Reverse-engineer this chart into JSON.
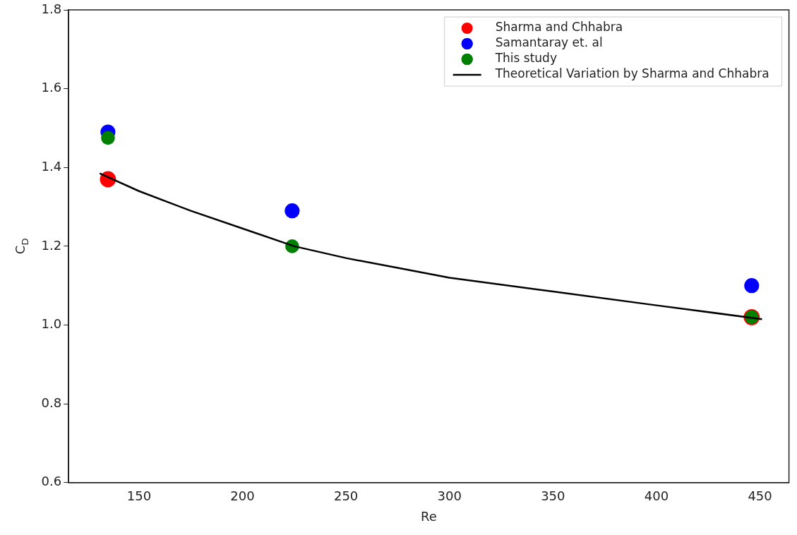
{
  "chart_data": {
    "type": "scatter",
    "xlabel": "Re",
    "ylabel": "C$_{D}$",
    "xlim": [
      116,
      464
    ],
    "xticks": [
      150,
      200,
      250,
      300,
      350,
      400,
      450
    ],
    "ylim": [
      0.6,
      1.8
    ],
    "yticks": [
      {
        "value": 0.6,
        "label": "0.6"
      },
      {
        "value": 0.8,
        "label": "0.8"
      },
      {
        "value": 1.0,
        "label": "1.0"
      },
      {
        "value": 1.2,
        "label": "1.2"
      },
      {
        "value": 1.4,
        "label": "1.4"
      },
      {
        "value": 1.6,
        "label": "1.6"
      },
      {
        "value": 1.8,
        "label": "1.8"
      }
    ],
    "grid": false,
    "legend": "top right",
    "marker": "circle",
    "series": [
      {
        "name": "Sharma and Chhabra",
        "color": "#ff0000",
        "x": [
          135,
          224,
          446
        ],
        "values": [
          1.37,
          null,
          1.02
        ]
      },
      {
        "name": "Samantaray et. al",
        "color": "#0000ff",
        "x": [
          135,
          224,
          446
        ],
        "values": [
          1.49,
          1.29,
          1.1
        ]
      },
      {
        "name": "This study",
        "color": "#008000",
        "x": [
          135,
          224,
          446
        ],
        "values": [
          1.475,
          1.2,
          1.02
        ]
      },
      {
        "name": "Theoretical Variation by Sharma and Chhabra",
        "type": "line",
        "color": "#000000",
        "marker": "none",
        "x": [
          131,
          150,
          175,
          200,
          225,
          250,
          275,
          300,
          350,
          400,
          451
        ],
        "values": [
          1.385,
          1.34,
          1.29,
          1.245,
          1.2,
          1.17,
          1.145,
          1.12,
          1.085,
          1.05,
          1.015
        ]
      }
    ]
  }
}
